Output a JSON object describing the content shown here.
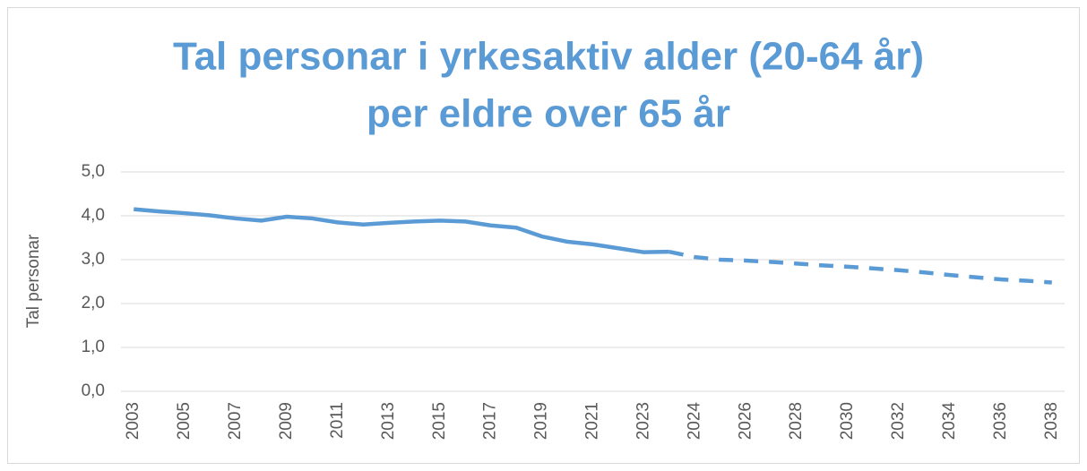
{
  "chart_data": {
    "type": "line",
    "title": [
      "Tal personar i yrkesaktiv alder (20-64 år)",
      "per eldre over 65 år"
    ],
    "y_label": "Tal personar",
    "categories": [
      "2003",
      null,
      "2005",
      null,
      "2007",
      null,
      "2009",
      null,
      "2011",
      null,
      "2013",
      null,
      "2015",
      null,
      "2017",
      null,
      "2019",
      null,
      "2021",
      null,
      "2023",
      null,
      "2024",
      null,
      "2026",
      null,
      "2028",
      null,
      "2030",
      null,
      "2032",
      null,
      "2034",
      null,
      "2036",
      null,
      "2038"
    ],
    "series": [
      {
        "color": "#5b9bd5",
        "dash": false,
        "values": [
          4.15,
          4.1,
          4.06,
          4.01,
          3.94,
          3.89,
          3.98,
          3.94,
          3.85,
          3.8,
          3.84,
          3.87,
          3.89,
          3.87,
          3.78,
          3.73,
          3.53,
          3.41,
          3.35,
          3.26,
          3.17,
          3.18,
          null,
          null,
          null,
          null,
          null,
          null,
          null,
          null,
          null,
          null,
          null,
          null,
          null,
          null,
          null
        ]
      },
      {
        "color": "#5b9bd5",
        "dash": true,
        "values": [
          null,
          null,
          null,
          null,
          null,
          null,
          null,
          null,
          null,
          null,
          null,
          null,
          null,
          null,
          null,
          null,
          null,
          null,
          null,
          null,
          null,
          3.18,
          3.06,
          3.0,
          2.98,
          2.95,
          2.91,
          2.87,
          2.84,
          2.8,
          2.76,
          2.71,
          2.65,
          2.6,
          2.55,
          2.52,
          2.48
        ]
      }
    ],
    "ylim": [
      0,
      5
    ],
    "yticks": [
      {
        "value": 0,
        "label": "0,0"
      },
      {
        "value": 1,
        "label": "1,0"
      },
      {
        "value": 2,
        "label": "2,0"
      },
      {
        "value": 3,
        "label": "3,0"
      },
      {
        "value": 4,
        "label": "4,0"
      },
      {
        "value": 5,
        "label": "5,0"
      }
    ],
    "grid": true
  }
}
